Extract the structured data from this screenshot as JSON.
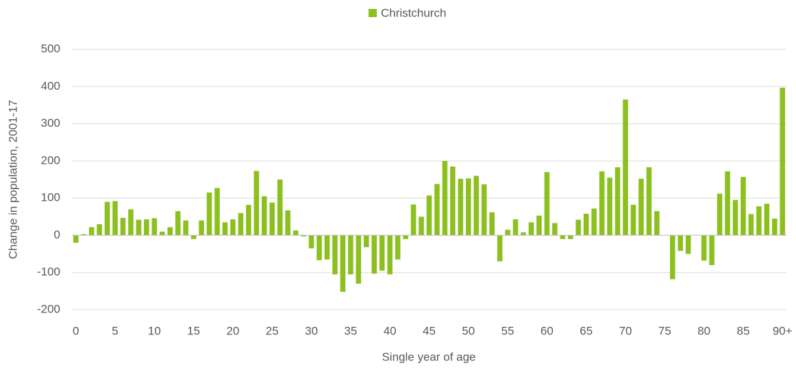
{
  "chart_data": {
    "type": "bar",
    "y_label": "Change in population, 2001-17",
    "x_label": "Single year of age",
    "categories": [
      "0",
      null,
      null,
      null,
      null,
      "5",
      null,
      null,
      null,
      null,
      "10",
      null,
      null,
      null,
      null,
      "15",
      null,
      null,
      null,
      null,
      "20",
      null,
      null,
      null,
      null,
      "25",
      null,
      null,
      null,
      null,
      "30",
      null,
      null,
      null,
      null,
      "35",
      null,
      null,
      null,
      null,
      "40",
      null,
      null,
      null,
      null,
      "45",
      null,
      null,
      null,
      null,
      "50",
      null,
      null,
      null,
      null,
      "55",
      null,
      null,
      null,
      null,
      "60",
      null,
      null,
      null,
      null,
      "65",
      null,
      null,
      null,
      null,
      "70",
      null,
      null,
      null,
      null,
      "75",
      null,
      null,
      null,
      null,
      "80",
      null,
      null,
      null,
      null,
      "85",
      null,
      null,
      null,
      null,
      "90+"
    ],
    "series": [
      {
        "name": "Christchurch",
        "color": "#8cc01f",
        "values": [
          -20,
          3,
          22,
          30,
          90,
          92,
          47,
          70,
          42,
          43,
          46,
          10,
          22,
          65,
          40,
          -10,
          40,
          115,
          127,
          35,
          43,
          60,
          82,
          173,
          105,
          88,
          150,
          67,
          13,
          -3,
          -35,
          -67,
          -65,
          -105,
          -152,
          -105,
          -130,
          -32,
          -103,
          -95,
          -105,
          -65,
          -10,
          83,
          50,
          107,
          138,
          200,
          185,
          152,
          153,
          160,
          137,
          62,
          -70,
          15,
          43,
          8,
          35,
          53,
          170,
          33,
          -10,
          -10,
          42,
          58,
          72,
          172,
          155,
          183,
          365,
          82,
          152,
          183,
          65,
          0,
          -118,
          -42,
          -50,
          0,
          -68,
          -80,
          112,
          172,
          95,
          157,
          57,
          78,
          85,
          45,
          397
        ]
      }
    ],
    "ylim": [
      -200,
      500
    ],
    "yticks": [
      -200,
      -100,
      0,
      100,
      200,
      300,
      400,
      500
    ],
    "grid": true,
    "legend": "top"
  }
}
